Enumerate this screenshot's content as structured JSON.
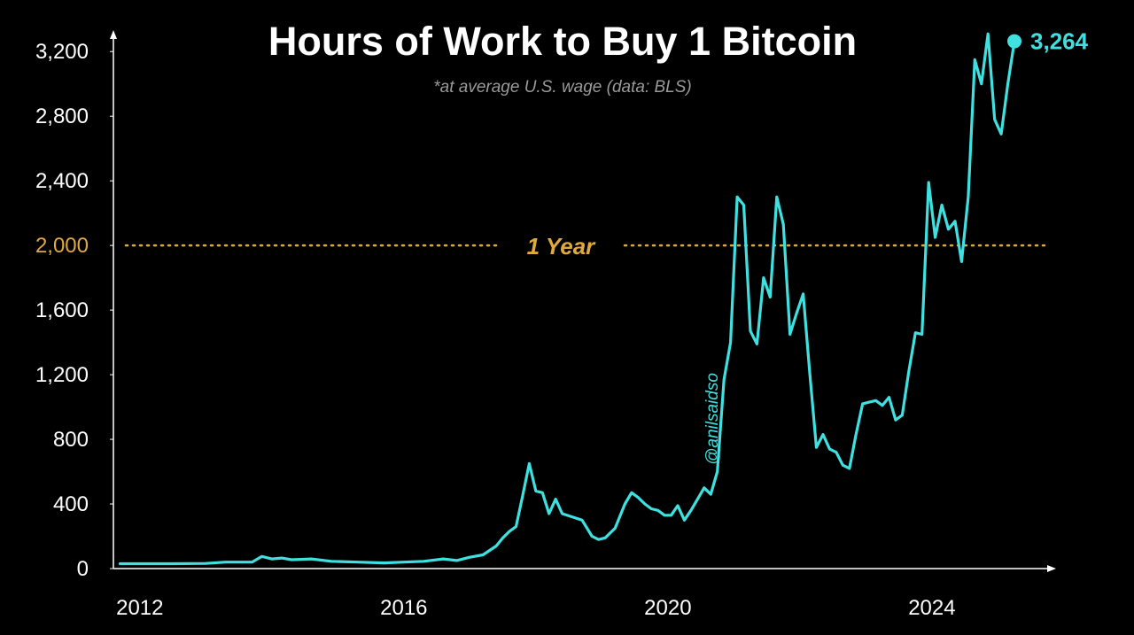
{
  "chart_data": {
    "type": "line",
    "title": "Hours of Work to Buy 1 Bitcoin",
    "subtitle": "*at average U.S. wage (data: BLS)",
    "xlabel": "",
    "ylabel": "",
    "xlim": [
      2011.6,
      2025.8
    ],
    "ylim": [
      0,
      3300
    ],
    "x_ticks": [
      2012,
      2016,
      2020,
      2024
    ],
    "x_tick_labels": [
      "2012",
      "2016",
      "2020",
      "2024"
    ],
    "y_ticks": [
      0,
      400,
      800,
      1200,
      1600,
      2000,
      2400,
      2800,
      3200
    ],
    "y_tick_labels": [
      "0",
      "400",
      "800",
      "1,200",
      "1,600",
      "2,000",
      "2,400",
      "2,800",
      "3,200"
    ],
    "highlight_y_tick": "2,000",
    "grid": false,
    "legend": "none",
    "reference_line": {
      "y": 2000,
      "label": "1 Year",
      "style": "dotted",
      "color": "#e0a93c"
    },
    "end_point": {
      "x": 2025.25,
      "y": 3264,
      "label": "3,264"
    },
    "watermark": "@anilsaidso",
    "colors": {
      "background": "#000000",
      "line": "#3ee0e0",
      "reference": "#e0a93c",
      "axis": "#ffffff"
    },
    "series": [
      {
        "x": [
          2011.7,
          2012.0,
          2012.5,
          2013.0,
          2013.3,
          2013.7,
          2013.85,
          2014.0,
          2014.15,
          2014.3,
          2014.6,
          2014.9,
          2015.3,
          2015.7,
          2016.0,
          2016.3,
          2016.6,
          2016.8,
          2017.0,
          2017.2,
          2017.4,
          2017.5,
          2017.6,
          2017.7,
          2017.8,
          2017.9,
          2018.0,
          2018.1,
          2018.2,
          2018.3,
          2018.4,
          2018.55,
          2018.7,
          2018.85,
          2018.95,
          2019.05,
          2019.2,
          2019.35,
          2019.45,
          2019.55,
          2019.65,
          2019.75,
          2019.85,
          2019.95,
          2020.05,
          2020.15,
          2020.25,
          2020.35,
          2020.45,
          2020.55,
          2020.65,
          2020.75,
          2020.85,
          2020.95,
          2021.05,
          2021.15,
          2021.25,
          2021.35,
          2021.45,
          2021.55,
          2021.65,
          2021.75,
          2021.85,
          2021.95,
          2022.05,
          2022.15,
          2022.25,
          2022.35,
          2022.45,
          2022.55,
          2022.65,
          2022.75,
          2022.85,
          2022.95,
          2023.05,
          2023.15,
          2023.25,
          2023.35,
          2023.45,
          2023.55,
          2023.65,
          2023.75,
          2023.85,
          2023.95,
          2024.05,
          2024.15,
          2024.25,
          2024.35,
          2024.45,
          2024.55,
          2024.65,
          2024.75,
          2024.85,
          2024.95,
          2025.05,
          2025.15,
          2025.25
        ],
        "y": [
          30,
          30,
          30,
          32,
          40,
          40,
          75,
          60,
          65,
          55,
          60,
          45,
          40,
          35,
          40,
          45,
          60,
          50,
          70,
          85,
          140,
          190,
          230,
          260,
          450,
          650,
          480,
          470,
          340,
          430,
          340,
          320,
          300,
          200,
          180,
          190,
          250,
          400,
          470,
          440,
          400,
          370,
          360,
          330,
          330,
          390,
          300,
          360,
          430,
          500,
          460,
          600,
          1170,
          1400,
          2300,
          2250,
          1470,
          1390,
          1800,
          1680,
          2300,
          2130,
          1450,
          1580,
          1700,
          1210,
          750,
          830,
          740,
          720,
          640,
          620,
          830,
          1020,
          1030,
          1040,
          1010,
          1060,
          920,
          950,
          1220,
          1460,
          1450,
          2390,
          2050,
          2250,
          2100,
          2150,
          1900,
          2300,
          3150,
          3000,
          3310,
          2780,
          2690,
          3000,
          3264
        ]
      }
    ]
  }
}
